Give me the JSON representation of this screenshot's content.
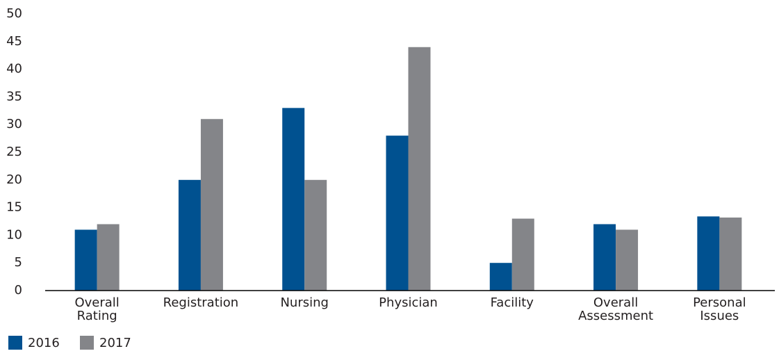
{
  "chart_data": {
    "type": "bar",
    "categories": [
      "Overall Rating",
      "Registration",
      "Nursing",
      "Physician",
      "Facility",
      "Overall Assessment",
      "Personal Issues"
    ],
    "series": [
      {
        "name": "2016",
        "color": "#005190",
        "values": [
          11,
          20,
          33,
          28,
          5,
          12,
          13.4
        ]
      },
      {
        "name": "2017",
        "color": "#848589",
        "values": [
          12,
          31,
          20,
          44,
          13,
          11,
          13.2
        ]
      }
    ],
    "ylim": [
      0,
      50
    ],
    "yticks": [
      0,
      5,
      10,
      15,
      20,
      25,
      30,
      35,
      40,
      45,
      50
    ],
    "grid": false
  }
}
